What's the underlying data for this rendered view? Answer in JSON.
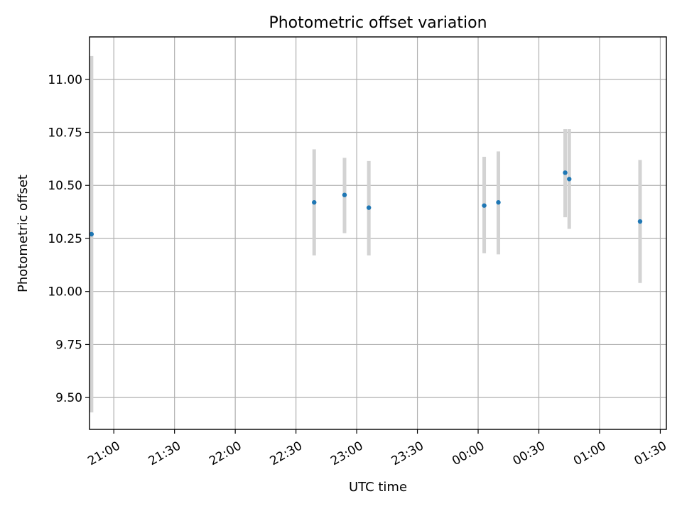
{
  "chart_data": {
    "type": "scatter",
    "title": "Photometric offset variation",
    "xlabel": "UTC time",
    "ylabel": "Photometric offset",
    "grid": true,
    "ylim": [
      9.35,
      11.2
    ],
    "xlim": [
      "20:48",
      "01:33"
    ],
    "yticks": [
      {
        "value": 9.5,
        "label": "9.50"
      },
      {
        "value": 9.75,
        "label": "9.75"
      },
      {
        "value": 10.0,
        "label": "10.00"
      },
      {
        "value": 10.25,
        "label": "10.25"
      },
      {
        "value": 10.5,
        "label": "10.50"
      },
      {
        "value": 10.75,
        "label": "10.75"
      },
      {
        "value": 11.0,
        "label": "11.00"
      }
    ],
    "xticks": [
      {
        "time": "21:00",
        "label": "21:00"
      },
      {
        "time": "21:30",
        "label": "21:30"
      },
      {
        "time": "22:00",
        "label": "22:00"
      },
      {
        "time": "22:30",
        "label": "22:30"
      },
      {
        "time": "23:00",
        "label": "23:00"
      },
      {
        "time": "23:30",
        "label": "23:30"
      },
      {
        "time": "00:00",
        "label": "00:00"
      },
      {
        "time": "00:30",
        "label": "00:30"
      },
      {
        "time": "01:00",
        "label": "01:00"
      },
      {
        "time": "01:30",
        "label": "01:30"
      }
    ],
    "points": [
      {
        "time": "20:49",
        "value": 10.27,
        "low": 9.43,
        "high": 11.11
      },
      {
        "time": "22:39",
        "value": 10.42,
        "low": 10.17,
        "high": 10.67
      },
      {
        "time": "22:54",
        "value": 10.455,
        "low": 10.275,
        "high": 10.63
      },
      {
        "time": "23:06",
        "value": 10.395,
        "low": 10.17,
        "high": 10.615
      },
      {
        "time": "00:03",
        "value": 10.405,
        "low": 10.18,
        "high": 10.635
      },
      {
        "time": "00:10",
        "value": 10.42,
        "low": 10.175,
        "high": 10.66
      },
      {
        "time": "00:43",
        "value": 10.56,
        "low": 10.35,
        "high": 10.765
      },
      {
        "time": "00:45",
        "value": 10.53,
        "low": 10.295,
        "high": 10.765
      },
      {
        "time": "01:20",
        "value": 10.33,
        "low": 10.04,
        "high": 10.62
      }
    ],
    "colors": {
      "point": "#1f77b4",
      "errorbar": "#d3d3d3",
      "grid": "#b0b0b0",
      "axes": "#000000"
    }
  }
}
